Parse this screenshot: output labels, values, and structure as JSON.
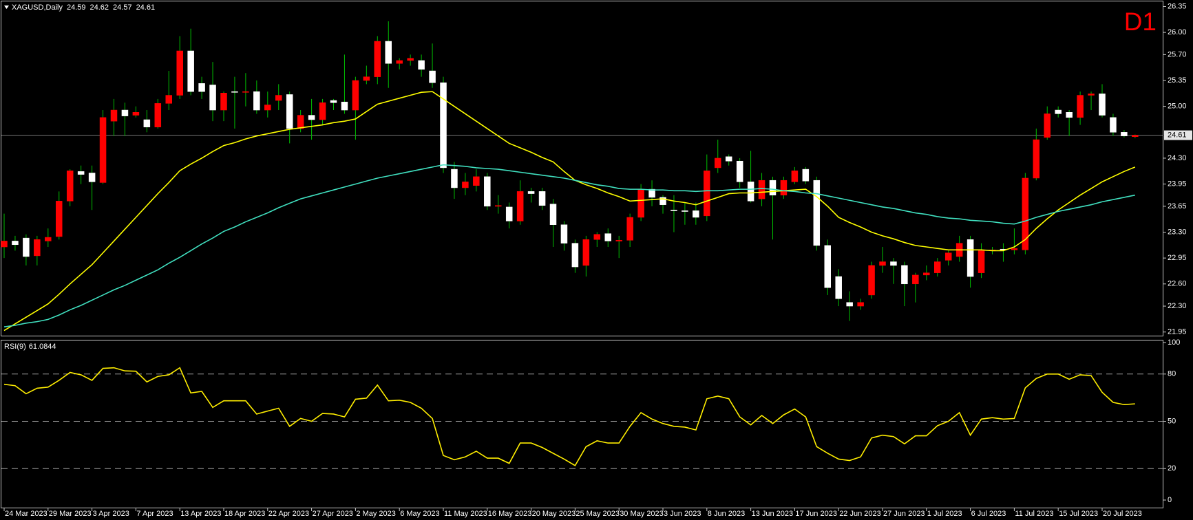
{
  "chart_data": [
    {
      "type": "candlestick",
      "title": "XAGUSD,Daily",
      "annotation": "D1",
      "categories": [
        "24 Mar 2023",
        null,
        null,
        null,
        "29 Mar 2023",
        null,
        null,
        null,
        "3 Apr 2023",
        null,
        null,
        null,
        "7 Apr 2023",
        null,
        null,
        null,
        "13 Apr 2023",
        null,
        null,
        null,
        "18 Apr 2023",
        null,
        null,
        null,
        "22 Apr 2023",
        null,
        null,
        null,
        "27 Apr 2023",
        null,
        null,
        null,
        "2 May 2023",
        null,
        null,
        null,
        "6 May 2023",
        null,
        null,
        null,
        "11 May 2023",
        null,
        null,
        null,
        "16 May 2023",
        null,
        null,
        null,
        "20 May 2023",
        null,
        null,
        null,
        "25 May 2023",
        null,
        null,
        null,
        "30 May 2023",
        null,
        null,
        null,
        "3 Jun 2023",
        null,
        null,
        null,
        "8 Jun 2023",
        null,
        null,
        null,
        "13 Jun 2023",
        null,
        null,
        null,
        "17 Jun 2023",
        null,
        null,
        null,
        "22 Jun 2023",
        null,
        null,
        null,
        "27 Jun 2023",
        null,
        null,
        null,
        "1 Jul 2023",
        null,
        null,
        null,
        "6 Jul 2023",
        null,
        null,
        null,
        "11 Jul 2023",
        null,
        null,
        null,
        "15 Jul 2023",
        null,
        null,
        null,
        "20 Jul 2023",
        null,
        null,
        null
      ],
      "open": [
        23.1,
        23.18,
        23.22,
        22.98,
        23.18,
        23.24,
        23.72,
        24.12,
        24.1,
        23.97,
        24.8,
        24.95,
        24.88,
        24.82,
        24.72,
        25.04,
        25.15,
        25.75,
        25.31,
        25.29,
        24.95,
        25.2,
        25.2,
        25.2,
        24.95,
        25.08,
        25.16,
        24.7,
        24.88,
        24.82,
        25.08,
        25.06,
        24.95,
        25.35,
        25.4,
        25.88,
        25.58,
        25.62,
        25.62,
        25.48,
        25.32,
        24.15,
        23.9,
        23.93,
        24.05,
        23.65,
        23.64,
        23.45,
        23.85,
        23.85,
        23.68,
        23.4,
        23.15,
        22.85,
        23.2,
        23.28,
        23.18,
        23.19,
        23.5,
        23.88,
        23.77,
        23.6,
        23.59,
        23.59,
        23.52,
        24.17,
        24.32,
        24.26,
        23.98,
        23.75,
        24.0,
        23.8,
        23.98,
        24.15,
        24.0,
        23.12,
        22.7,
        22.35,
        22.3,
        22.45,
        22.85,
        22.9,
        22.85,
        22.6,
        22.72,
        22.75,
        22.92,
        22.97,
        23.2,
        22.75,
        23.05,
        23.07,
        23.06,
        23.06,
        24.03,
        24.58,
        24.95,
        24.92,
        24.85,
        25.15,
        25.17,
        24.85,
        24.65,
        24.59
      ],
      "high": [
        23.55,
        23.25,
        23.27,
        23.25,
        23.35,
        23.85,
        24.15,
        24.2,
        24.2,
        24.95,
        25.1,
        25.05,
        25.0,
        24.95,
        25.1,
        25.48,
        25.95,
        26.05,
        25.4,
        25.6,
        25.2,
        25.4,
        25.45,
        25.35,
        25.2,
        25.3,
        25.2,
        24.95,
        25.1,
        25.1,
        25.1,
        25.7,
        25.4,
        25.55,
        25.95,
        26.15,
        25.65,
        25.7,
        25.7,
        25.85,
        25.4,
        24.25,
        24.1,
        24.15,
        24.1,
        23.8,
        23.7,
        24.0,
        23.9,
        23.9,
        23.75,
        23.45,
        23.2,
        23.25,
        23.3,
        23.35,
        23.25,
        23.55,
        23.95,
        24.0,
        23.8,
        23.8,
        23.7,
        23.7,
        24.35,
        24.55,
        24.35,
        24.3,
        24.4,
        24.1,
        24.05,
        24.05,
        24.18,
        24.18,
        24.05,
        23.2,
        22.8,
        22.5,
        22.4,
        22.9,
        23.1,
        22.95,
        22.9,
        22.75,
        22.85,
        22.95,
        23.05,
        23.25,
        23.25,
        23.15,
        23.1,
        23.15,
        23.35,
        24.1,
        24.7,
        25.0,
        25.0,
        24.95,
        25.2,
        25.2,
        25.3,
        24.9,
        24.68,
        24.62
      ],
      "low": [
        22.95,
        23.05,
        22.85,
        22.85,
        23.1,
        23.2,
        23.65,
        23.95,
        23.6,
        23.95,
        24.6,
        24.6,
        24.85,
        24.65,
        24.7,
        24.95,
        25.1,
        25.15,
        25.1,
        24.8,
        24.8,
        24.7,
        25.0,
        24.9,
        24.85,
        24.95,
        24.5,
        24.65,
        24.55,
        24.75,
        24.95,
        24.9,
        24.55,
        25.3,
        25.3,
        25.25,
        25.5,
        25.55,
        25.4,
        25.25,
        24.1,
        23.75,
        23.8,
        23.85,
        23.6,
        23.55,
        23.35,
        23.4,
        23.7,
        23.6,
        23.1,
        23.05,
        22.75,
        22.7,
        23.1,
        23.1,
        22.95,
        23.1,
        23.45,
        23.65,
        23.55,
        23.3,
        23.4,
        23.4,
        23.45,
        24.1,
        24.2,
        23.9,
        23.7,
        23.65,
        23.2,
        23.75,
        23.95,
        23.95,
        23.05,
        22.45,
        22.3,
        22.1,
        22.25,
        22.4,
        22.75,
        22.6,
        22.3,
        22.35,
        22.65,
        22.7,
        22.85,
        22.9,
        22.55,
        22.68,
        23.0,
        22.9,
        23.0,
        23.0,
        24.0,
        24.55,
        24.85,
        24.6,
        24.75,
        24.95,
        24.85,
        24.6,
        24.58,
        24.57
      ],
      "close": [
        23.18,
        23.13,
        22.97,
        23.2,
        23.23,
        23.72,
        24.13,
        24.08,
        23.98,
        24.85,
        24.95,
        24.87,
        24.92,
        24.72,
        25.04,
        25.15,
        25.75,
        25.2,
        25.2,
        24.95,
        25.18,
        25.19,
        25.2,
        24.95,
        25.02,
        25.15,
        24.7,
        24.88,
        24.82,
        25.05,
        25.05,
        24.95,
        25.35,
        25.4,
        25.88,
        25.58,
        25.62,
        25.65,
        25.5,
        25.32,
        24.17,
        23.9,
        23.98,
        24.05,
        23.65,
        23.66,
        23.45,
        23.85,
        23.82,
        23.66,
        23.4,
        23.15,
        22.83,
        23.2,
        23.27,
        23.18,
        23.19,
        23.5,
        23.88,
        23.77,
        23.67,
        23.59,
        23.58,
        23.5,
        24.13,
        24.3,
        24.26,
        23.98,
        23.72,
        24.0,
        23.8,
        24.0,
        24.13,
        23.99,
        23.12,
        22.55,
        22.4,
        22.3,
        22.35,
        22.85,
        22.9,
        22.85,
        22.6,
        22.72,
        22.75,
        22.9,
        23.02,
        23.15,
        22.7,
        23.05,
        23.06,
        23.06,
        23.08,
        24.03,
        24.55,
        24.9,
        24.9,
        24.85,
        25.15,
        25.17,
        24.88,
        24.65,
        24.6,
        24.61
      ],
      "bull_color": "#ff0000",
      "bear_color": "#ffffff",
      "wick_color": "#00c000",
      "indicators": [
        {
          "color": "#ffff00",
          "values": [
            21.97,
            22.06,
            22.15,
            22.24,
            22.33,
            22.46,
            22.6,
            22.73,
            22.86,
            23.02,
            23.18,
            23.34,
            23.5,
            23.66,
            23.82,
            23.97,
            24.13,
            24.22,
            24.3,
            24.39,
            24.47,
            24.51,
            24.56,
            24.6,
            24.63,
            24.66,
            24.69,
            24.71,
            24.73,
            24.75,
            24.78,
            24.8,
            24.83,
            24.93,
            25.03,
            25.07,
            25.11,
            25.15,
            25.19,
            25.2,
            25.1,
            25.0,
            24.9,
            24.8,
            24.7,
            24.6,
            24.5,
            24.44,
            24.38,
            24.31,
            24.25,
            24.12,
            24.0,
            23.94,
            23.89,
            23.83,
            23.78,
            23.72,
            23.73,
            23.74,
            23.75,
            23.72,
            23.7,
            23.67,
            23.72,
            23.77,
            23.82,
            23.83,
            23.83,
            23.84,
            23.85,
            23.86,
            23.87,
            23.88,
            23.78,
            23.65,
            23.5,
            23.43,
            23.37,
            23.3,
            23.25,
            23.21,
            23.16,
            23.12,
            23.1,
            23.08,
            23.06,
            23.06,
            23.06,
            23.06,
            23.05,
            23.05,
            23.1,
            23.2,
            23.35,
            23.48,
            23.6,
            23.7,
            23.8,
            23.89,
            23.98,
            24.05,
            24.12,
            24.18
          ]
        },
        {
          "color": "#40e0c0",
          "values": [
            22.02,
            22.04,
            22.07,
            22.09,
            22.12,
            22.18,
            22.25,
            22.31,
            22.38,
            22.45,
            22.52,
            22.58,
            22.65,
            22.72,
            22.79,
            22.88,
            22.96,
            23.05,
            23.14,
            23.22,
            23.31,
            23.37,
            23.44,
            23.5,
            23.56,
            23.63,
            23.69,
            23.75,
            23.79,
            23.83,
            23.87,
            23.91,
            23.95,
            23.99,
            24.03,
            24.06,
            24.09,
            24.12,
            24.15,
            24.18,
            24.21,
            24.2,
            24.19,
            24.17,
            24.16,
            24.15,
            24.13,
            24.11,
            24.09,
            24.07,
            24.05,
            24.03,
            24.0,
            23.97,
            23.94,
            23.92,
            23.89,
            23.88,
            23.88,
            23.87,
            23.87,
            23.86,
            23.86,
            23.85,
            23.86,
            23.86,
            23.87,
            23.88,
            23.88,
            23.89,
            23.88,
            23.86,
            23.85,
            23.83,
            23.82,
            23.79,
            23.76,
            23.73,
            23.7,
            23.67,
            23.64,
            23.62,
            23.59,
            23.56,
            23.54,
            23.51,
            23.49,
            23.48,
            23.46,
            23.45,
            23.44,
            23.42,
            23.41,
            23.45,
            23.5,
            23.54,
            23.58,
            23.61,
            23.64,
            23.67,
            23.71,
            23.74,
            23.77,
            23.8
          ]
        }
      ],
      "price_line_color": "#a0a0a0",
      "ylim": [
        21.91,
        26.41
      ],
      "yticks": [
        26.35,
        {
          "value": 26,
          "label": "26.00"
        },
        {
          "value": 25.7,
          "label": "25.70"
        },
        25.35,
        {
          "value": 25,
          "label": "25.00"
        },
        {
          "value": 24.3,
          "label": "24.30"
        },
        23.95,
        23.65,
        {
          "value": 23.3,
          "label": "23.30"
        },
        22.95,
        {
          "value": 22.6,
          "label": "22.60"
        },
        {
          "value": 22.3,
          "label": "22.30"
        },
        21.95
      ],
      "grid": false
    },
    {
      "type": "line",
      "title": "RSI(9)",
      "color": "#ffee00",
      "values": [
        73.5,
        72.6,
        67.5,
        71,
        71.7,
        76,
        81,
        79.5,
        76,
        83.6,
        84,
        82,
        81.8,
        75,
        78.5,
        79.5,
        84,
        68,
        69,
        58.8,
        63,
        63,
        63,
        54.6,
        56.5,
        58.3,
        46.8,
        51.8,
        50,
        55,
        54.6,
        52.8,
        64,
        64.7,
        73,
        63,
        63.4,
        62,
        58.3,
        51.8,
        28.3,
        25.6,
        27.4,
        31,
        26.6,
        26.6,
        23.3,
        36.2,
        36.2,
        33.4,
        29.7,
        26,
        21.9,
        33.9,
        37.6,
        36.2,
        36.2,
        46.8,
        55.5,
        51.4,
        48.6,
        46.8,
        46.3,
        44.5,
        64.3,
        66,
        64.3,
        52.8,
        47.7,
        53.7,
        48.6,
        54.1,
        57.8,
        52.8,
        33.9,
        29.7,
        26,
        25.1,
        27.4,
        39.4,
        41.2,
        40.3,
        35.7,
        40.8,
        40.8,
        47.2,
        50,
        55.5,
        41.2,
        51.4,
        52.3,
        51.4,
        51.8,
        71.2,
        77.2,
        80,
        80,
        76.7,
        79.5,
        79,
        68.4,
        62,
        60.6,
        61.0844
      ],
      "levels": [
        80,
        50,
        20
      ],
      "level_color": "#a0a0a0",
      "ylim": [
        0,
        100
      ],
      "yticks": [
        100,
        80,
        50,
        20,
        0
      ],
      "grid": false
    }
  ]
}
